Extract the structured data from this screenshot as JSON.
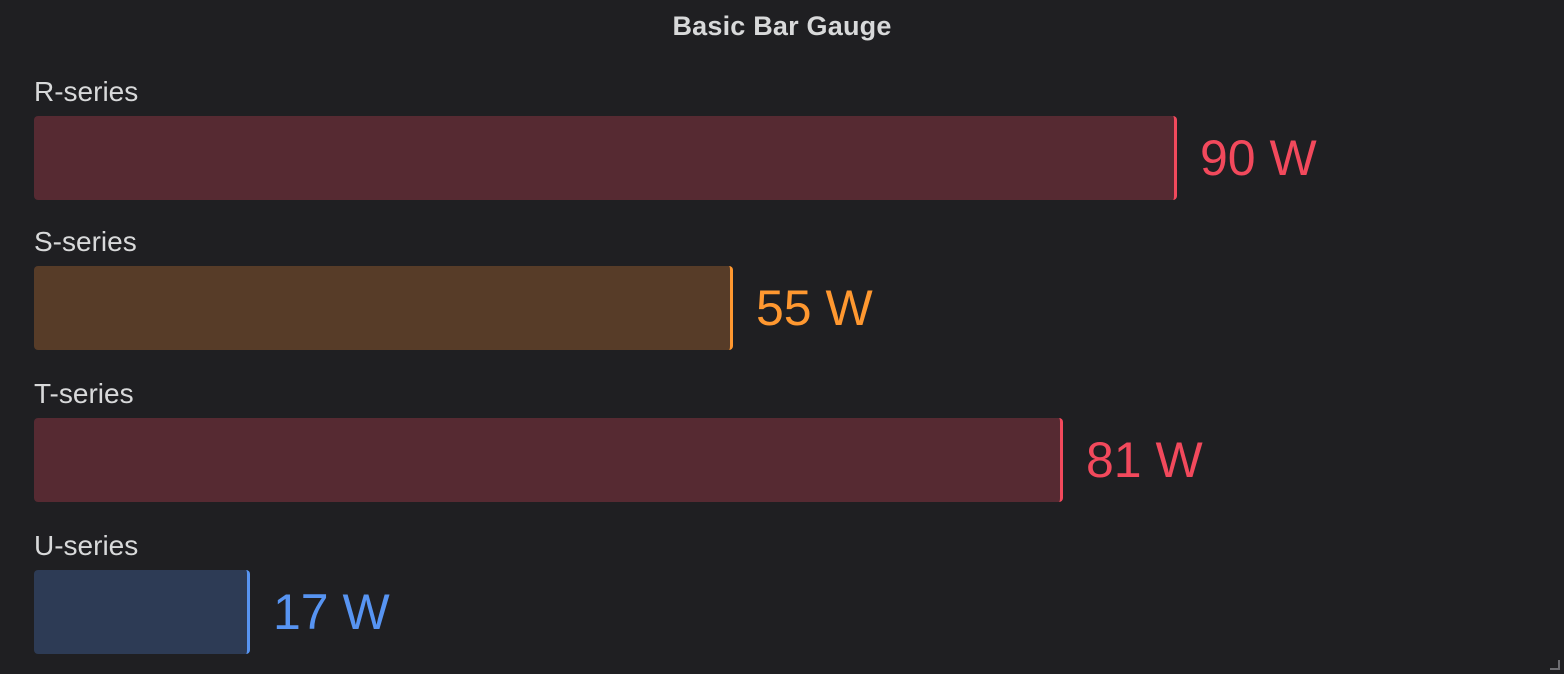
{
  "panel": {
    "title": "Basic Bar Gauge"
  },
  "colors": {
    "background": "#1f1f22",
    "text": "#d8d9da",
    "red": "#f2495c",
    "red_fill": "#562a32",
    "orange": "#ff9830",
    "orange_fill": "#573c28",
    "blue": "#5794f2",
    "blue_fill": "#2d3b55"
  },
  "chart_data": {
    "type": "bar",
    "orientation": "horizontal",
    "title": "Basic Bar Gauge",
    "unit": "W",
    "categories": [
      "R-series",
      "S-series",
      "T-series",
      "U-series"
    ],
    "values": [
      90,
      55,
      81,
      17
    ],
    "value_labels": [
      "90 W",
      "55 W",
      "81 W",
      "17 W"
    ],
    "value_colors": [
      "red",
      "orange",
      "red",
      "blue"
    ],
    "xlim": [
      0,
      100
    ],
    "grid": false
  }
}
